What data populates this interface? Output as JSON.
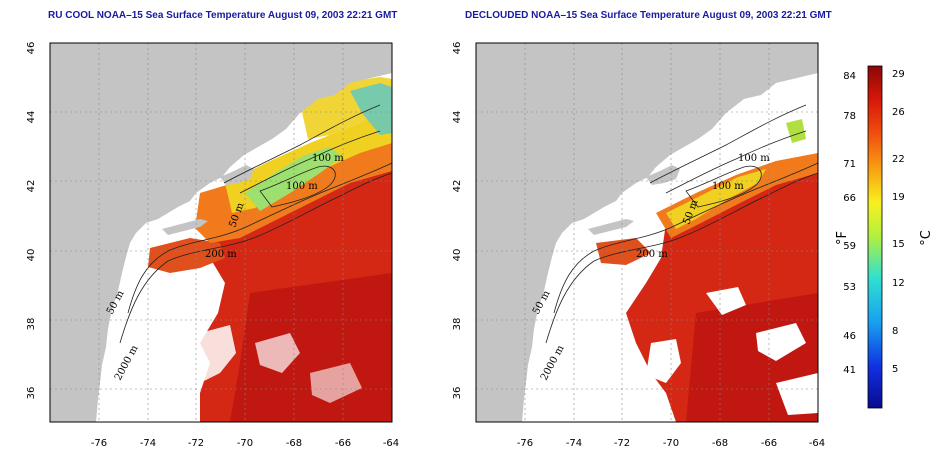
{
  "panels": [
    {
      "id": "left",
      "title": "RU COOL NOAA–15 Sea Surface Temperature August 09, 2003 22:21 GMT"
    },
    {
      "id": "right",
      "title": "DECLOUDED NOAA–15 Sea Surface Temperature August 09, 2003 22:21 GMT"
    }
  ],
  "axes": {
    "lon_ticks": [
      "-76",
      "-74",
      "-72",
      "-70",
      "-68",
      "-66",
      "-64"
    ],
    "lat_ticks": [
      "46",
      "44",
      "42",
      "40",
      "38",
      "36"
    ]
  },
  "contour_labels": {
    "left": [
      "100 m",
      "100 m",
      "50 m",
      "200 m",
      "50 m",
      "2000 m"
    ],
    "right": [
      "100 m",
      "100 m",
      "50 m",
      "200 m",
      "50 m",
      "2000 m"
    ]
  },
  "colorbar": {
    "f_ticks": [
      "84",
      "78",
      "71",
      "66",
      "59",
      "53",
      "46",
      "41"
    ],
    "c_ticks": [
      "29",
      "26",
      "22",
      "19",
      "15",
      "12",
      "8",
      "5"
    ],
    "f_label": "°F",
    "c_label": "°C"
  },
  "colors": {
    "land": "#c4c4c4",
    "ocean_warm": "#d42814",
    "ocean_hot": "#b81010",
    "shelf_orange": "#f07a1c",
    "shelf_yellow": "#f0d020",
    "shelf_cool": "#62c8c0",
    "title": "#1a1aa0"
  }
}
